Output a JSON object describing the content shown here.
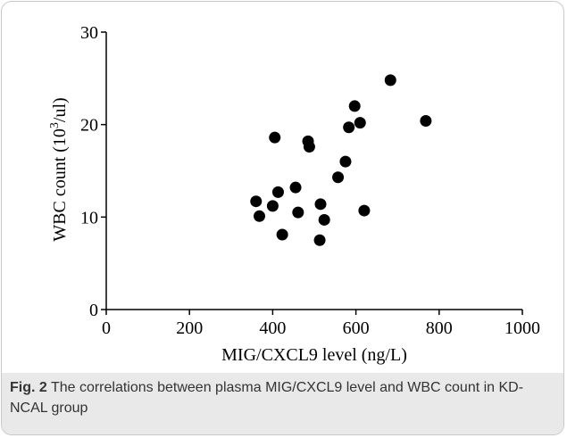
{
  "chart_data": {
    "type": "scatter",
    "title": "",
    "xlabel": "MIG/CXCL9 level (ng/L)",
    "ylabel_main": "WBC count (10",
    "ylabel_exp": "3",
    "ylabel_tail": "/ul)",
    "xlim": [
      0,
      1000
    ],
    "ylim": [
      0,
      30
    ],
    "x_ticks": [
      0,
      200,
      400,
      600,
      800,
      1000
    ],
    "y_ticks": [
      0,
      10,
      20,
      30
    ],
    "grid": false,
    "points": [
      {
        "x": 360,
        "y": 11.7
      },
      {
        "x": 368,
        "y": 10.1
      },
      {
        "x": 400,
        "y": 11.2
      },
      {
        "x": 405,
        "y": 18.6
      },
      {
        "x": 413,
        "y": 12.7
      },
      {
        "x": 423,
        "y": 8.1
      },
      {
        "x": 455,
        "y": 13.2
      },
      {
        "x": 461,
        "y": 10.5
      },
      {
        "x": 485,
        "y": 18.2
      },
      {
        "x": 488,
        "y": 17.6
      },
      {
        "x": 513,
        "y": 7.5
      },
      {
        "x": 515,
        "y": 11.4
      },
      {
        "x": 524,
        "y": 9.7
      },
      {
        "x": 557,
        "y": 14.3
      },
      {
        "x": 575,
        "y": 16.0
      },
      {
        "x": 583,
        "y": 19.7
      },
      {
        "x": 597,
        "y": 22.0
      },
      {
        "x": 610,
        "y": 20.2
      },
      {
        "x": 620,
        "y": 10.7
      },
      {
        "x": 683,
        "y": 24.8
      },
      {
        "x": 768,
        "y": 20.4
      }
    ]
  },
  "caption": {
    "label": "Fig. 2",
    "text": " The correlations between plasma MIG/CXCL9 level and WBC count in KD-NCAL group"
  }
}
